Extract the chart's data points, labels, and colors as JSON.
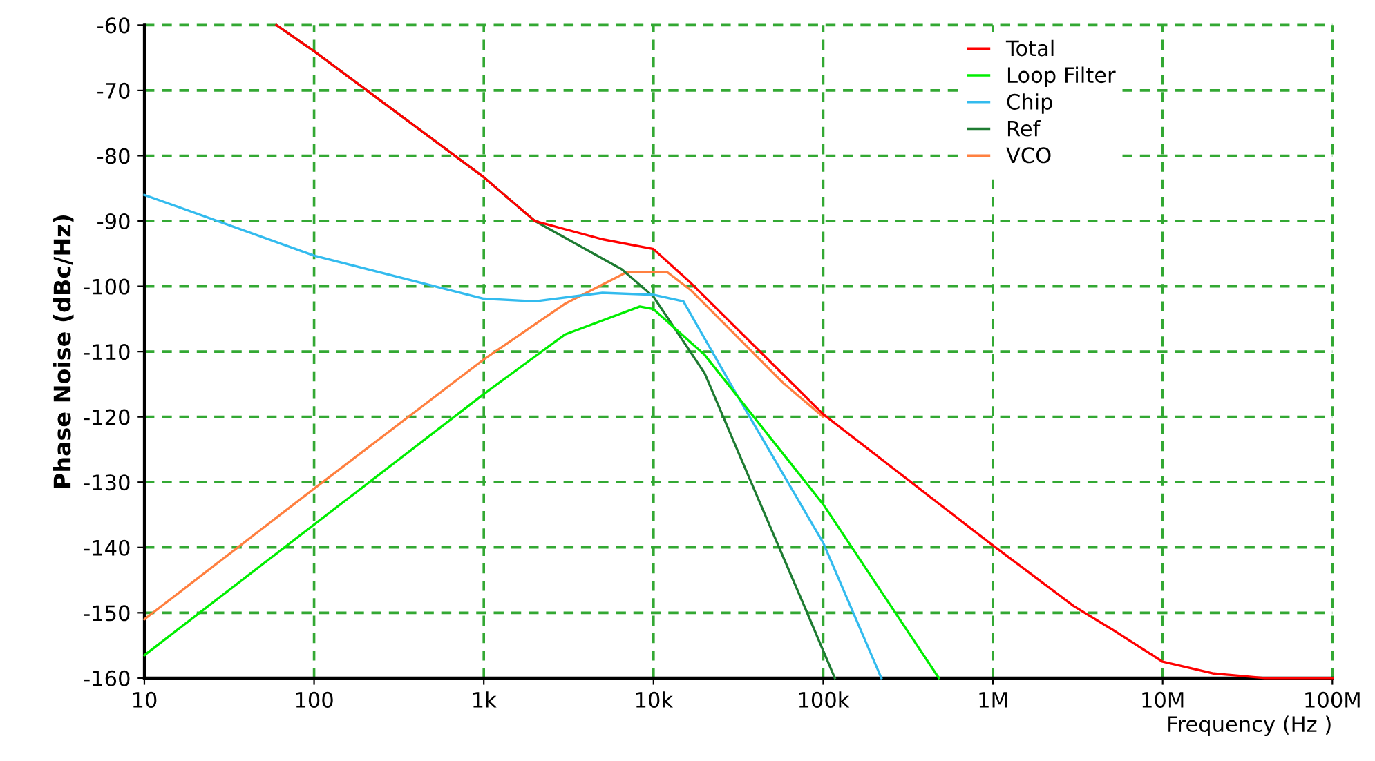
{
  "chart_data": {
    "type": "line",
    "xlabel": "Frequency (Hz )",
    "ylabel": "Phase Noise (dBc/Hz)",
    "log": "x",
    "xlim": [
      10,
      100000000
    ],
    "xticks": [
      {
        "value": 10,
        "label": "10"
      },
      {
        "value": 100,
        "label": "100"
      },
      {
        "value": 1000,
        "label": "1k"
      },
      {
        "value": 10000,
        "label": "10k"
      },
      {
        "value": 100000,
        "label": "100k"
      },
      {
        "value": 1000000,
        "label": "1M"
      },
      {
        "value": 10000000,
        "label": "10M"
      },
      {
        "value": 100000000,
        "label": "100M"
      }
    ],
    "ylim": [
      -160,
      -60
    ],
    "yticks": [
      -160,
      -150,
      -140,
      -130,
      -120,
      -110,
      -100,
      -90,
      -80,
      -70,
      -60
    ],
    "grid": true,
    "legend": "top right",
    "marker": "none",
    "line_style": "solid",
    "series": [
      {
        "name": "Total",
        "color": "#ff0000",
        "x": [
          60,
          100,
          1000,
          2000,
          5000,
          10000,
          16600,
          58000,
          100000,
          1000000,
          3000000,
          5000000,
          10000000,
          20000000,
          40000000,
          100000000
        ],
        "values": [
          -60,
          -64,
          -83.3,
          -90,
          -92.8,
          -94.3,
          -99.5,
          -113.5,
          -119.6,
          -139.7,
          -149,
          -152.5,
          -157.5,
          -159.3,
          -160,
          -160
        ]
      },
      {
        "name": "Loop Filter",
        "color": "#00ee00",
        "x": [
          10,
          100,
          1000,
          3000,
          8300,
          10000,
          20000,
          100000,
          480000
        ],
        "values": [
          -156.5,
          -136.5,
          -116.5,
          -107.4,
          -103.1,
          -103.5,
          -110.5,
          -133.4,
          -160
        ]
      },
      {
        "name": "Chip",
        "color": "#33bbee",
        "x": [
          10,
          100,
          1000,
          2000,
          5000,
          10000,
          15000,
          30000,
          100000,
          220000
        ],
        "values": [
          -86,
          -95.3,
          -101.9,
          -102.3,
          -101,
          -101.3,
          -102.3,
          -116,
          -139.3,
          -160
        ]
      },
      {
        "name": "Ref",
        "color": "#1e7b32",
        "x": [
          60,
          100,
          1000,
          2000,
          6500,
          10000,
          20000,
          37000,
          78000,
          117000
        ],
        "values": [
          -60,
          -64,
          -83.3,
          -90,
          -97.4,
          -101.6,
          -113.3,
          -129.6,
          -149.2,
          -160
        ]
      },
      {
        "name": "VCO",
        "color": "#ff8040",
        "x": [
          10,
          100,
          1000,
          3000,
          7000,
          12000,
          16600,
          58000,
          100000
        ],
        "values": [
          -151,
          -131,
          -111.2,
          -102.7,
          -97.8,
          -97.8,
          -100.6,
          -114.8,
          -120
        ]
      }
    ]
  }
}
